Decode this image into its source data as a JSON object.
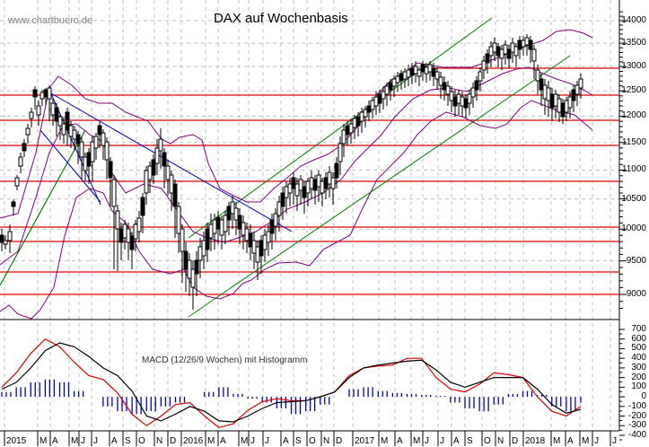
{
  "header": {
    "watermark": "www.chartbuero.de",
    "title": "DAX auf Wochenbasis"
  },
  "macd_panel": {
    "label": "MACD (12/26/9 Wochen) mit Histogramm"
  },
  "colors": {
    "candle": "#000000",
    "support_resistance": "#e00000",
    "bollinger": "#800080",
    "trend_channel": "#008000",
    "downtrend": "#0000cc",
    "macd_line": "#000000",
    "signal_line": "#e00000",
    "histogram": "#0000cc",
    "grid": "#c0c0c0"
  },
  "chart_data": [
    {
      "type": "candlestick",
      "title": "DAX auf Wochenbasis",
      "xlabel": "",
      "ylabel": "",
      "ylim": [
        8700,
        14300
      ],
      "y_scale": "log",
      "grid": true,
      "y_ticks": [
        9000,
        9500,
        10000,
        10500,
        11000,
        11500,
        12000,
        12500,
        13000,
        13500,
        14000
      ],
      "x_ticks": [
        "2015",
        "M",
        "A",
        "M",
        "J",
        "J",
        "A",
        "S",
        "O",
        "N",
        "D",
        "2016",
        "M",
        "A",
        "M",
        "J",
        "J",
        "A",
        "S",
        "O",
        "N",
        "D",
        "2017",
        "M",
        "A",
        "M",
        "J",
        "J",
        "A",
        "S",
        "O",
        "N",
        "D",
        "2018",
        "M",
        "A",
        "M",
        "J",
        "J"
      ],
      "horizontal_levels": [
        12950,
        12400,
        11900,
        11450,
        10800,
        10050,
        9800,
        9330,
        9000
      ],
      "overlays": [
        "Bollinger Bands",
        "Green uptrend channel",
        "Blue downtrend lines",
        "Red support/resistance lines"
      ],
      "series": [
        {
          "name": "DAX weekly close (approx.)",
          "points": [
            [
              "2015-01",
              9800
            ],
            [
              "2015-02",
              10900
            ],
            [
              "2015-03",
              11800
            ],
            [
              "2015-04",
              12300
            ],
            [
              "2015-04b",
              11600
            ],
            [
              "2015-05",
              11400
            ],
            [
              "2015-06",
              11000
            ],
            [
              "2015-07",
              11600
            ],
            [
              "2015-08",
              10300
            ],
            [
              "2015-09",
              9700
            ],
            [
              "2015-10",
              10100
            ],
            [
              "2015-11",
              10900
            ],
            [
              "2015-12",
              10700
            ],
            [
              "2016-01",
              9800
            ],
            [
              "2016-02",
              9100
            ],
            [
              "2016-03",
              9900
            ],
            [
              "2016-04",
              10000
            ],
            [
              "2016-05",
              9900
            ],
            [
              "2016-06",
              9600
            ],
            [
              "2016-07",
              10300
            ],
            [
              "2016-08",
              10600
            ],
            [
              "2016-09",
              10500
            ],
            [
              "2016-10",
              10700
            ],
            [
              "2016-11",
              10600
            ],
            [
              "2016-12",
              11400
            ],
            [
              "2017-01",
              11700
            ],
            [
              "2017-02",
              11900
            ],
            [
              "2017-03",
              12200
            ],
            [
              "2017-04",
              12400
            ],
            [
              "2017-05",
              12650
            ],
            [
              "2017-06",
              12800
            ],
            [
              "2017-07",
              12300
            ],
            [
              "2017-08",
              12100
            ],
            [
              "2017-09",
              12500
            ],
            [
              "2017-10",
              13100
            ],
            [
              "2017-11",
              13300
            ],
            [
              "2017-12",
              12900
            ],
            [
              "2018-01",
              13400
            ],
            [
              "2018-02",
              12400
            ],
            [
              "2018-03",
              12000
            ],
            [
              "2018-04",
              12500
            ],
            [
              "2018-05",
              12850
            ]
          ]
        }
      ]
    },
    {
      "type": "line",
      "title": "MACD (12/26/9 Wochen) mit Histogramm",
      "ylim": [
        -400,
        700
      ],
      "y_ticks": [
        700,
        600,
        500,
        400,
        300,
        200,
        100,
        0,
        -100,
        -200,
        -300,
        -400
      ],
      "series": [
        {
          "name": "MACD",
          "values": [
            80,
            150,
            300,
            480,
            560,
            520,
            420,
            300,
            220,
            60,
            -200,
            -250,
            -180,
            -100,
            -150,
            -250,
            -260,
            -200,
            -120,
            -60,
            -50,
            -40,
            0,
            50,
            200,
            300,
            330,
            350,
            370,
            380,
            280,
            150,
            100,
            150,
            200,
            200,
            200,
            80,
            -80,
            -170,
            -130
          ]
        },
        {
          "name": "Signal",
          "values": [
            100,
            250,
            450,
            600,
            520,
            360,
            220,
            180,
            40,
            -180,
            -300,
            -200,
            -80,
            -60,
            -200,
            -320,
            -280,
            -140,
            -50,
            -20,
            -40,
            -40,
            0,
            50,
            220,
            300,
            320,
            330,
            400,
            400,
            200,
            80,
            50,
            130,
            250,
            230,
            200,
            0,
            -150,
            -200,
            -100
          ]
        },
        {
          "name": "Histogram",
          "values": [
            50,
            100,
            150,
            180,
            150,
            60,
            0,
            -100,
            -150,
            -180,
            -150,
            -100,
            -60,
            0,
            50,
            100,
            30,
            -20,
            -60,
            -120,
            -180,
            -150,
            -80,
            0,
            80,
            100,
            60,
            40,
            30,
            20,
            10,
            -60,
            -120,
            -150,
            -80,
            30,
            60,
            20,
            -100,
            -150,
            -60
          ]
        }
      ]
    }
  ]
}
